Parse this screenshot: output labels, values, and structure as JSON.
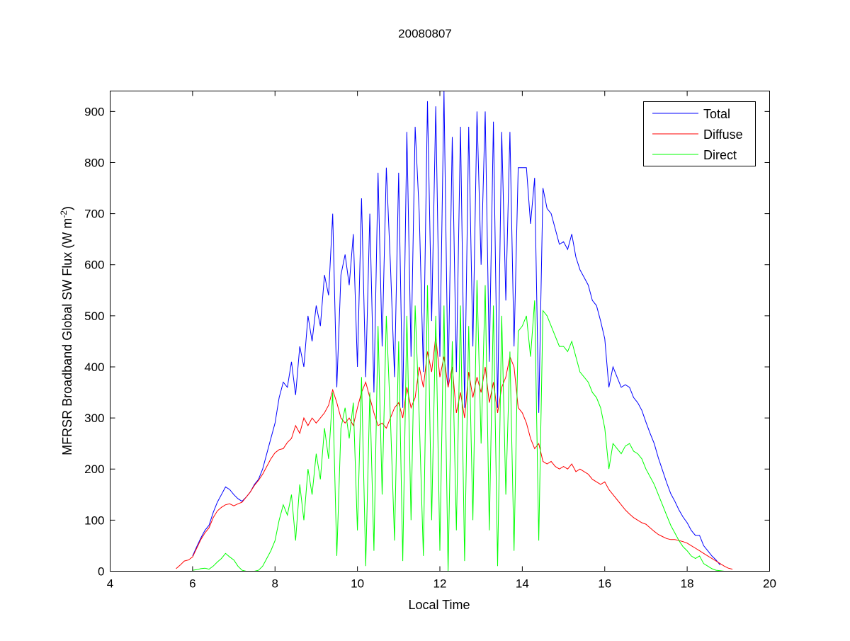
{
  "chart_data": {
    "type": "line",
    "title": "20080807",
    "xlabel": "Local Time",
    "ylabel": {
      "main": "MFRSR Broadband Global SW Flux (W m",
      "sup": "-2",
      "close": ")"
    },
    "xlim": [
      4,
      20
    ],
    "ylim": [
      0,
      940
    ],
    "xticks": [
      4,
      6,
      8,
      10,
      12,
      14,
      16,
      18,
      20
    ],
    "yticks": [
      0,
      100,
      200,
      300,
      400,
      500,
      600,
      700,
      800,
      900
    ],
    "grid": false,
    "legend_position": "top-right",
    "x_start": 5.6,
    "x_step": 0.1,
    "series": [
      {
        "name": "Total",
        "color": "#0000ff",
        "values": [
          null,
          null,
          null,
          null,
          30,
          48,
          65,
          80,
          90,
          115,
          135,
          150,
          165,
          160,
          150,
          142,
          137,
          145,
          155,
          170,
          180,
          200,
          230,
          260,
          290,
          340,
          370,
          360,
          410,
          345,
          440,
          400,
          500,
          450,
          520,
          480,
          580,
          540,
          700,
          360,
          580,
          620,
          560,
          660,
          400,
          730,
          380,
          700,
          350,
          780,
          440,
          790,
          600,
          380,
          780,
          320,
          860,
          420,
          870,
          700,
          390,
          920,
          490,
          910,
          420,
          940,
          360,
          850,
          390,
          870,
          320,
          870,
          440,
          900,
          600,
          900,
          410,
          880,
          320,
          860,
          530,
          860,
          440,
          790,
          790,
          790,
          680,
          770,
          310,
          750,
          710,
          700,
          670,
          640,
          645,
          630,
          660,
          615,
          590,
          575,
          560,
          530,
          520,
          490,
          455,
          360,
          400,
          380,
          360,
          365,
          360,
          340,
          330,
          315,
          292,
          270,
          250,
          222,
          198,
          174,
          152,
          137,
          120,
          106,
          95,
          80,
          70,
          70,
          50,
          40,
          30,
          22,
          12,
          null,
          null,
          null
        ]
      },
      {
        "name": "Diffuse",
        "color": "#ff0000",
        "values": [
          5,
          12,
          20,
          22,
          28,
          45,
          62,
          75,
          85,
          105,
          118,
          125,
          130,
          132,
          128,
          132,
          135,
          145,
          155,
          168,
          178,
          190,
          205,
          220,
          232,
          238,
          240,
          252,
          260,
          285,
          270,
          300,
          285,
          300,
          290,
          300,
          310,
          325,
          355,
          330,
          300,
          290,
          300,
          285,
          320,
          350,
          370,
          340,
          310,
          285,
          290,
          280,
          300,
          320,
          330,
          300,
          360,
          320,
          340,
          400,
          360,
          430,
          390,
          460,
          380,
          420,
          360,
          400,
          310,
          350,
          300,
          390,
          340,
          380,
          350,
          400,
          330,
          370,
          310,
          360,
          380,
          420,
          400,
          320,
          310,
          290,
          260,
          240,
          250,
          215,
          210,
          215,
          205,
          200,
          205,
          200,
          210,
          195,
          200,
          195,
          190,
          180,
          175,
          170,
          175,
          160,
          150,
          140,
          130,
          120,
          112,
          105,
          100,
          95,
          92,
          85,
          78,
          72,
          68,
          64,
          62,
          62,
          60,
          58,
          55,
          50,
          45,
          40,
          35,
          30,
          25,
          20,
          15,
          10,
          6,
          4
        ]
      },
      {
        "name": "Direct",
        "color": "#00ff00",
        "values": [
          null,
          null,
          null,
          null,
          2,
          3,
          5,
          6,
          4,
          10,
          18,
          25,
          35,
          28,
          22,
          10,
          2,
          0,
          0,
          0,
          2,
          10,
          25,
          40,
          60,
          100,
          130,
          110,
          150,
          60,
          170,
          100,
          200,
          150,
          230,
          180,
          280,
          220,
          350,
          30,
          280,
          320,
          260,
          330,
          80,
          380,
          10,
          350,
          40,
          480,
          150,
          500,
          300,
          60,
          450,
          20,
          500,
          100,
          520,
          300,
          30,
          560,
          100,
          500,
          40,
          520,
          0,
          450,
          80,
          520,
          20,
          480,
          100,
          570,
          250,
          560,
          80,
          520,
          10,
          500,
          150,
          430,
          40,
          470,
          480,
          500,
          420,
          530,
          60,
          510,
          500,
          480,
          460,
          440,
          440,
          430,
          450,
          420,
          390,
          380,
          370,
          350,
          340,
          320,
          280,
          200,
          250,
          240,
          230,
          245,
          250,
          235,
          230,
          220,
          200,
          185,
          170,
          150,
          130,
          110,
          90,
          75,
          60,
          48,
          40,
          30,
          25,
          30,
          15,
          10,
          5,
          2,
          1,
          0,
          null,
          null
        ]
      }
    ]
  }
}
